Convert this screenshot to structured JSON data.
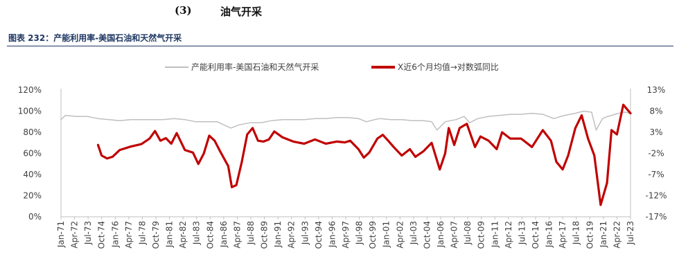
{
  "heading": {
    "number": "(3)",
    "title": "油气开采"
  },
  "figure_title": "图表 232：产能利用率-美国石油和天然气开采",
  "colors": {
    "series1": "#bfbfbf",
    "series2": "#c00000",
    "title": "#1f3864",
    "axis": "#bfbfbf",
    "text": "#404040"
  },
  "chart_data": {
    "type": "line",
    "title": "",
    "xlabel": "",
    "ylabel": "",
    "legend_position": "top",
    "grid": false,
    "x_range": [
      "1971-01",
      "2023-07"
    ],
    "x_tick_labels": [
      "Jan-71",
      "Apr-72",
      "Jul-73",
      "Oct-74",
      "Jan-76",
      "Apr-77",
      "Jul-78",
      "Oct-79",
      "Jan-81",
      "Apr-82",
      "Jul-83",
      "Oct-84",
      "Jan-86",
      "Apr-87",
      "Jul-88",
      "Oct-89",
      "Jan-91",
      "Apr-92",
      "Jul-93",
      "Oct-94",
      "Jan-96",
      "Apr-97",
      "Jul-98",
      "Oct-99",
      "Jan-01",
      "Apr-02",
      "Jul-03",
      "Oct-04",
      "Jan-06",
      "Apr-07",
      "Jul-08",
      "Oct-09",
      "Jan-11",
      "Apr-12",
      "Jul-13",
      "Oct-14",
      "Jan-16",
      "Apr-17",
      "Jul-18",
      "Oct-19",
      "Jan-21",
      "Apr-22",
      "Jul-23"
    ],
    "y_left": {
      "range": [
        0,
        120
      ],
      "ticks": [
        "0%",
        "20%",
        "40%",
        "60%",
        "80%",
        "100%",
        "120%"
      ]
    },
    "y_right": {
      "range": [
        -17,
        13
      ],
      "ticks": [
        "-17%",
        "-12%",
        "-7%",
        "-2%",
        "3%",
        "8%",
        "13%"
      ]
    },
    "series": [
      {
        "name": "产能利用率-美国石油和天然气开采",
        "axis": "left",
        "points": [
          [
            "1971-01",
            92
          ],
          [
            "1971-06",
            96
          ],
          [
            "1972-06",
            95
          ],
          [
            "1973-06",
            95
          ],
          [
            "1974-06",
            93
          ],
          [
            "1975-06",
            92
          ],
          [
            "1976-06",
            91
          ],
          [
            "1977-06",
            92
          ],
          [
            "1978-06",
            92
          ],
          [
            "1979-06",
            92
          ],
          [
            "1980-06",
            92
          ],
          [
            "1981-06",
            93
          ],
          [
            "1982-06",
            92
          ],
          [
            "1983-06",
            90
          ],
          [
            "1984-06",
            90
          ],
          [
            "1985-06",
            90
          ],
          [
            "1986-01",
            87
          ],
          [
            "1986-09",
            84
          ],
          [
            "1987-06",
            87
          ],
          [
            "1988-06",
            89
          ],
          [
            "1989-06",
            89
          ],
          [
            "1990-06",
            91
          ],
          [
            "1991-06",
            92
          ],
          [
            "1992-06",
            92
          ],
          [
            "1993-06",
            92
          ],
          [
            "1994-06",
            93
          ],
          [
            "1995-06",
            93
          ],
          [
            "1996-06",
            94
          ],
          [
            "1997-06",
            94
          ],
          [
            "1998-06",
            93
          ],
          [
            "1999-03",
            90
          ],
          [
            "1999-12",
            92
          ],
          [
            "2000-06",
            93
          ],
          [
            "2001-06",
            92
          ],
          [
            "2002-06",
            92
          ],
          [
            "2003-06",
            91
          ],
          [
            "2004-06",
            91
          ],
          [
            "2005-03",
            90
          ],
          [
            "2005-09",
            82
          ],
          [
            "2006-06",
            90
          ],
          [
            "2007-06",
            92
          ],
          [
            "2008-03",
            95
          ],
          [
            "2008-09",
            89
          ],
          [
            "2009-06",
            93
          ],
          [
            "2010-06",
            95
          ],
          [
            "2011-06",
            96
          ],
          [
            "2012-06",
            97
          ],
          [
            "2013-06",
            97
          ],
          [
            "2014-06",
            98
          ],
          [
            "2015-06",
            97
          ],
          [
            "2016-06",
            93
          ],
          [
            "2017-06",
            96
          ],
          [
            "2018-06",
            98
          ],
          [
            "2019-03",
            100
          ],
          [
            "2019-12",
            99
          ],
          [
            "2020-05",
            82
          ],
          [
            "2020-12",
            93
          ],
          [
            "2021-06",
            95
          ],
          [
            "2022-06",
            98
          ],
          [
            "2023-01",
            99
          ],
          [
            "2023-07",
            98
          ]
        ]
      },
      {
        "name": "X近6个月均值→对数弧同比",
        "axis": "right",
        "points": [
          [
            "1974-06",
            0
          ],
          [
            "1974-10",
            -2.5
          ],
          [
            "1975-04",
            -3.2
          ],
          [
            "1975-10",
            -2.8
          ],
          [
            "1976-06",
            -1.2
          ],
          [
            "1977-06",
            -0.4
          ],
          [
            "1978-06",
            0.2
          ],
          [
            "1979-03",
            1.5
          ],
          [
            "1979-09",
            3.3
          ],
          [
            "1980-03",
            1
          ],
          [
            "1980-09",
            1.6
          ],
          [
            "1981-03",
            0.3
          ],
          [
            "1981-09",
            2.8
          ],
          [
            "1982-06",
            -1.2
          ],
          [
            "1983-03",
            -1.8
          ],
          [
            "1983-09",
            -4.5
          ],
          [
            "1984-03",
            -2
          ],
          [
            "1984-09",
            2.2
          ],
          [
            "1985-03",
            1
          ],
          [
            "1985-09",
            -1.5
          ],
          [
            "1986-06",
            -5
          ],
          [
            "1986-10",
            -10
          ],
          [
            "1987-03",
            -9.5
          ],
          [
            "1987-09",
            -4
          ],
          [
            "1988-03",
            2.5
          ],
          [
            "1988-09",
            4
          ],
          [
            "1989-03",
            1
          ],
          [
            "1989-09",
            0.8
          ],
          [
            "1990-03",
            1.3
          ],
          [
            "1990-09",
            3.2
          ],
          [
            "1991-06",
            1.8
          ],
          [
            "1992-06",
            0.8
          ],
          [
            "1993-06",
            0.3
          ],
          [
            "1994-06",
            1.3
          ],
          [
            "1995-06",
            0.3
          ],
          [
            "1996-06",
            0.8
          ],
          [
            "1997-03",
            0.6
          ],
          [
            "1997-09",
            1
          ],
          [
            "1998-06",
            -1
          ],
          [
            "1998-12",
            -3
          ],
          [
            "1999-06",
            -1.8
          ],
          [
            "2000-03",
            1.5
          ],
          [
            "2000-09",
            2.4
          ],
          [
            "2001-03",
            1
          ],
          [
            "2001-09",
            -0.5
          ],
          [
            "2002-06",
            -2.5
          ],
          [
            "2003-03",
            -1
          ],
          [
            "2003-09",
            -2.8
          ],
          [
            "2004-06",
            -1.5
          ],
          [
            "2005-03",
            0.5
          ],
          [
            "2005-12",
            -5.8
          ],
          [
            "2006-06",
            -2
          ],
          [
            "2006-10",
            4
          ],
          [
            "2007-04",
            0
          ],
          [
            "2007-10",
            4
          ],
          [
            "2008-06",
            5
          ],
          [
            "2009-03",
            -0.5
          ],
          [
            "2009-09",
            2
          ],
          [
            "2010-06",
            1
          ],
          [
            "2011-03",
            -1
          ],
          [
            "2011-09",
            3
          ],
          [
            "2012-06",
            1.5
          ],
          [
            "2013-06",
            1.5
          ],
          [
            "2014-06",
            -0.5
          ],
          [
            "2015-06",
            3.5
          ],
          [
            "2016-03",
            1
          ],
          [
            "2016-09",
            -4
          ],
          [
            "2017-04",
            -5.8
          ],
          [
            "2017-10",
            -2.5
          ],
          [
            "2018-06",
            4
          ],
          [
            "2019-01",
            7
          ],
          [
            "2019-08",
            1.5
          ],
          [
            "2020-03",
            -2.5
          ],
          [
            "2020-10",
            -14.2
          ],
          [
            "2021-05",
            -9
          ],
          [
            "2021-10",
            3.5
          ],
          [
            "2022-04",
            2.5
          ],
          [
            "2022-11",
            9.5
          ],
          [
            "2023-07",
            7.5
          ]
        ]
      }
    ]
  }
}
